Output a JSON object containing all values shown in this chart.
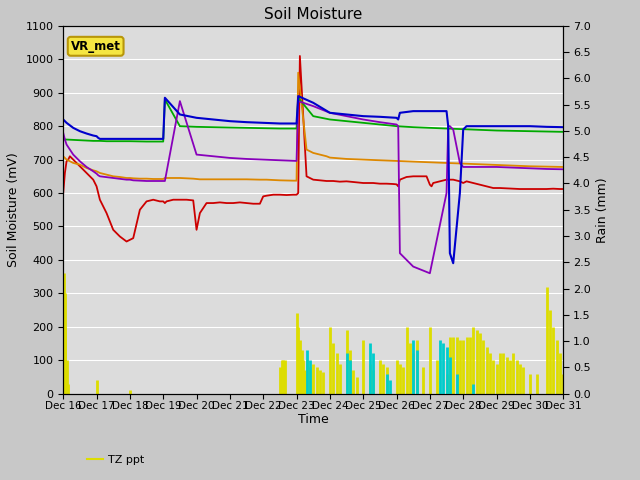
{
  "title": "Soil Moisture",
  "ylabel_left": "Soil Moisture (mV)",
  "ylabel_right": "Rain (mm)",
  "xlabel": "Time",
  "ylim_left": [
    0,
    1100
  ],
  "ylim_right": [
    0.0,
    7.0
  ],
  "yticks_left": [
    0,
    100,
    200,
    300,
    400,
    500,
    600,
    700,
    800,
    900,
    1000,
    1100
  ],
  "yticks_right": [
    0.0,
    0.5,
    1.0,
    1.5,
    2.0,
    2.5,
    3.0,
    3.5,
    4.0,
    4.5,
    5.0,
    5.5,
    6.0,
    6.5,
    7.0
  ],
  "xtick_labels": [
    "Dec 16",
    "Dec 17",
    "Dec 18",
    "Dec 19",
    "Dec 20",
    "Dec 21",
    "Dec 22",
    "Dec 23",
    "Dec 24",
    "Dec 25",
    "Dec 26",
    "Dec 27",
    "Dec 28",
    "Dec 29",
    "Dec 30",
    "Dec 31"
  ],
  "annotation_box": "VR_met",
  "annotation_box_facecolor": "#f5e642",
  "annotation_box_edgecolor": "#b8960a",
  "colors": {
    "SM1": "#cc0000",
    "SM2": "#dd8800",
    "SM3": "#00aa00",
    "SM4": "#0000cc",
    "SM5": "#8800bb",
    "Precip_mm": "#00cccc",
    "TZ_ppt": "#dddd00"
  },
  "fig_facecolor": "#c8c8c8",
  "ax_facecolor": "#dcdcdc",
  "grid_color": "#ffffff",
  "SM1_x": [
    0,
    0.05,
    0.1,
    0.15,
    0.2,
    0.3,
    0.5,
    0.7,
    0.9,
    1.0,
    1.1,
    1.3,
    1.5,
    1.7,
    1.9,
    2.0,
    2.1,
    2.3,
    2.5,
    2.7,
    2.9,
    3.0,
    3.05,
    3.1,
    3.3,
    3.5,
    3.7,
    3.9,
    4.0,
    4.1,
    4.3,
    4.5,
    4.7,
    4.9,
    5.0,
    5.1,
    5.3,
    5.5,
    5.7,
    5.9,
    6.0,
    6.1,
    6.3,
    6.5,
    6.7,
    6.9,
    7.0,
    7.05,
    7.1,
    7.3,
    7.5,
    7.7,
    7.9,
    8.0,
    8.1,
    8.3,
    8.5,
    8.7,
    8.9,
    9.0,
    9.1,
    9.3,
    9.5,
    9.7,
    9.9,
    10.0,
    10.05,
    10.1,
    10.3,
    10.5,
    10.7,
    10.9,
    11.0,
    11.05,
    11.1,
    11.3,
    11.5,
    11.7,
    11.9,
    12.0,
    12.1,
    12.3,
    12.5,
    12.7,
    12.9,
    13.0,
    13.1,
    13.3,
    13.5,
    13.7,
    13.9,
    14.0,
    14.1,
    14.3,
    14.5,
    14.7,
    14.9,
    15.0
  ],
  "SM1_y": [
    600,
    660,
    695,
    700,
    710,
    700,
    680,
    660,
    640,
    620,
    580,
    540,
    490,
    470,
    455,
    460,
    465,
    550,
    575,
    580,
    575,
    575,
    570,
    575,
    580,
    580,
    580,
    578,
    490,
    540,
    570,
    570,
    572,
    570,
    570,
    570,
    572,
    570,
    568,
    568,
    590,
    592,
    595,
    595,
    594,
    595,
    595,
    600,
    1010,
    650,
    640,
    638,
    636,
    636,
    636,
    634,
    635,
    633,
    631,
    630,
    630,
    630,
    628,
    628,
    627,
    626,
    620,
    640,
    648,
    650,
    650,
    650,
    625,
    620,
    630,
    635,
    640,
    640,
    635,
    630,
    635,
    630,
    625,
    620,
    615,
    615,
    615,
    614,
    613,
    612,
    612,
    612,
    612,
    612,
    612,
    613,
    612,
    612
  ],
  "SM2_x": [
    0,
    0.1,
    0.3,
    0.5,
    0.7,
    0.9,
    1.0,
    1.1,
    1.3,
    1.5,
    1.7,
    1.9,
    2.0,
    2.1,
    2.3,
    2.5,
    2.7,
    2.9,
    3.0,
    3.05,
    3.3,
    3.5,
    3.7,
    3.9,
    4.0,
    4.1,
    4.5,
    4.9,
    5.0,
    5.1,
    5.5,
    5.9,
    6.0,
    6.1,
    6.5,
    6.9,
    7.0,
    7.05,
    7.3,
    7.5,
    7.9,
    8.0,
    8.5,
    9.0,
    9.5,
    10.0,
    10.5,
    11.0,
    11.5,
    12.0,
    12.5,
    13.0,
    13.5,
    14.0,
    14.5,
    15.0
  ],
  "SM2_y": [
    710,
    700,
    690,
    685,
    675,
    668,
    665,
    660,
    655,
    650,
    648,
    645,
    645,
    644,
    643,
    643,
    642,
    642,
    642,
    645,
    645,
    645,
    644,
    643,
    642,
    641,
    641,
    641,
    641,
    641,
    641,
    640,
    640,
    640,
    638,
    637,
    637,
    960,
    730,
    720,
    710,
    706,
    702,
    700,
    698,
    696,
    694,
    692,
    690,
    688,
    686,
    684,
    682,
    680,
    679,
    678
  ],
  "SM3_x": [
    0,
    0.1,
    0.3,
    0.5,
    0.7,
    0.9,
    1.0,
    1.1,
    1.3,
    1.5,
    2.0,
    2.5,
    3.0,
    3.05,
    3.5,
    4.0,
    4.5,
    5.0,
    5.5,
    6.0,
    6.5,
    7.0,
    7.05,
    7.5,
    8.0,
    8.5,
    9.0,
    9.5,
    10.0,
    10.5,
    11.0,
    11.5,
    12.0,
    12.5,
    13.0,
    13.5,
    14.0,
    14.5,
    15.0
  ],
  "SM3_y": [
    760,
    760,
    759,
    758,
    757,
    756,
    756,
    756,
    755,
    755,
    755,
    754,
    754,
    880,
    800,
    798,
    797,
    796,
    795,
    794,
    793,
    793,
    885,
    830,
    820,
    815,
    810,
    805,
    800,
    797,
    795,
    793,
    791,
    789,
    787,
    786,
    785,
    784,
    783
  ],
  "SM4_x": [
    0,
    0.05,
    0.1,
    0.3,
    0.5,
    0.7,
    0.9,
    1.0,
    1.05,
    1.1,
    1.3,
    1.5,
    1.7,
    1.9,
    2.0,
    2.1,
    2.5,
    3.0,
    3.05,
    3.5,
    4.0,
    4.5,
    5.0,
    5.5,
    6.0,
    6.5,
    7.0,
    7.05,
    7.5,
    8.0,
    8.5,
    9.0,
    9.5,
    10.0,
    10.05,
    10.1,
    10.5,
    11.0,
    11.5,
    11.55,
    11.6,
    11.7,
    11.9,
    12.0,
    12.1,
    12.5,
    13.0,
    13.5,
    14.0,
    14.5,
    15.0
  ],
  "SM4_y": [
    820,
    815,
    810,
    795,
    785,
    778,
    772,
    770,
    765,
    762,
    762,
    762,
    762,
    762,
    762,
    762,
    762,
    762,
    885,
    835,
    825,
    820,
    815,
    812,
    810,
    808,
    808,
    890,
    870,
    840,
    835,
    830,
    828,
    825,
    820,
    840,
    845,
    845,
    845,
    800,
    420,
    390,
    600,
    790,
    800,
    800,
    800,
    800,
    800,
    798,
    797
  ],
  "SM5_x": [
    0,
    0.05,
    0.1,
    0.3,
    0.5,
    0.7,
    0.9,
    1.0,
    1.05,
    1.1,
    1.5,
    1.9,
    2.0,
    2.1,
    2.5,
    3.0,
    3.05,
    3.5,
    4.0,
    4.5,
    5.0,
    5.5,
    6.0,
    6.5,
    7.0,
    7.05,
    7.5,
    8.0,
    8.5,
    9.0,
    9.5,
    10.0,
    10.05,
    10.1,
    10.5,
    11.0,
    11.5,
    11.55,
    11.6,
    11.7,
    11.9,
    12.0,
    12.05,
    12.1,
    12.5,
    13.0,
    13.5,
    14.0,
    14.5,
    15.0
  ],
  "SM5_y": [
    780,
    760,
    745,
    715,
    695,
    678,
    665,
    658,
    653,
    650,
    645,
    640,
    640,
    638,
    636,
    636,
    636,
    875,
    715,
    710,
    705,
    702,
    700,
    698,
    696,
    875,
    860,
    840,
    830,
    820,
    812,
    805,
    800,
    420,
    380,
    360,
    600,
    800,
    800,
    790,
    690,
    678,
    678,
    678,
    678,
    678,
    676,
    674,
    672,
    671
  ],
  "TZ_ppt_x": [
    0.02,
    0.04,
    0.06,
    0.1,
    0.15,
    1.0,
    2.0,
    6.5,
    6.55,
    6.6,
    6.65,
    7.0,
    7.05,
    7.1,
    7.15,
    7.2,
    7.25,
    7.3,
    7.4,
    7.5,
    7.6,
    7.7,
    7.8,
    8.0,
    8.1,
    8.2,
    8.3,
    8.5,
    8.6,
    8.7,
    8.8,
    9.0,
    9.2,
    9.3,
    9.5,
    9.6,
    9.7,
    10.0,
    10.1,
    10.2,
    10.3,
    10.4,
    10.5,
    10.6,
    10.8,
    11.0,
    11.2,
    11.5,
    11.6,
    11.7,
    11.8,
    11.9,
    12.0,
    12.1,
    12.2,
    12.3,
    12.4,
    12.5,
    12.6,
    12.7,
    12.8,
    12.9,
    13.0,
    13.1,
    13.2,
    13.3,
    13.4,
    13.5,
    13.6,
    13.7,
    13.8,
    14.0,
    14.2,
    14.5,
    14.6,
    14.7,
    14.8,
    14.9,
    15.0
  ],
  "TZ_ppt_y": [
    360,
    300,
    200,
    100,
    30,
    40,
    10,
    80,
    100,
    100,
    100,
    240,
    200,
    160,
    130,
    100,
    70,
    100,
    80,
    90,
    80,
    70,
    65,
    200,
    150,
    120,
    90,
    190,
    130,
    70,
    50,
    160,
    90,
    70,
    100,
    90,
    80,
    100,
    90,
    80,
    200,
    150,
    120,
    160,
    80,
    200,
    100,
    60,
    170,
    170,
    170,
    160,
    160,
    170,
    170,
    200,
    190,
    180,
    160,
    140,
    120,
    100,
    90,
    120,
    120,
    110,
    100,
    120,
    100,
    90,
    80,
    60,
    60,
    320,
    250,
    200,
    160,
    120,
    60
  ],
  "Precip_mm_x": [
    0.02,
    0.04,
    1.0,
    7.3,
    7.4,
    8.5,
    8.6,
    9.2,
    9.3,
    9.7,
    9.8,
    10.5,
    10.6,
    11.3,
    11.4,
    11.5,
    11.6,
    11.8,
    12.3,
    13.5,
    13.6
  ],
  "Precip_mm_y": [
    0,
    0,
    0,
    130,
    100,
    120,
    100,
    150,
    120,
    60,
    40,
    160,
    130,
    160,
    150,
    140,
    110,
    60,
    30,
    0,
    0
  ]
}
